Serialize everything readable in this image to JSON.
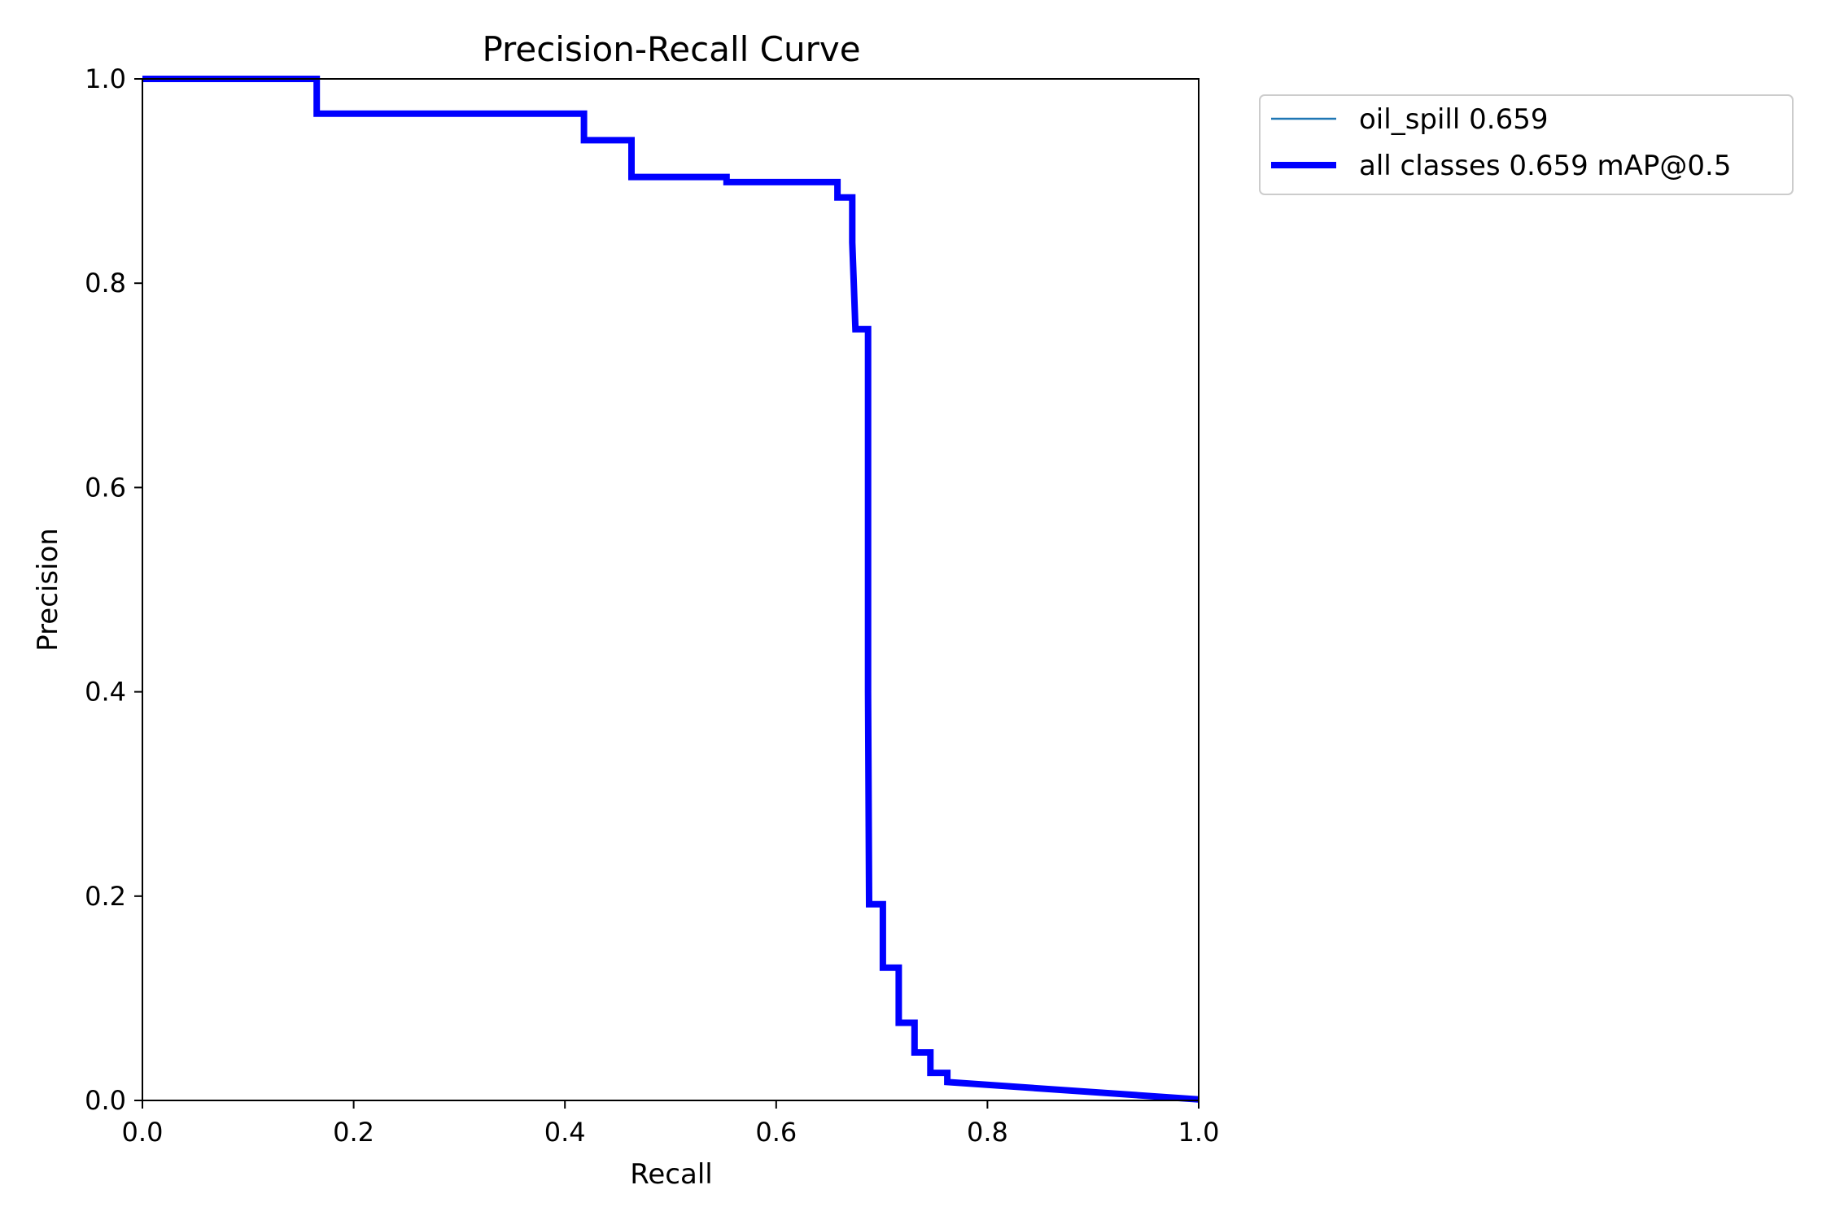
{
  "chart_data": {
    "type": "line",
    "title": "Precision-Recall Curve",
    "xlabel": "Recall",
    "ylabel": "Precision",
    "xlim": [
      0,
      1
    ],
    "ylim": [
      0,
      1
    ],
    "xticks": [
      "0.0",
      "0.2",
      "0.4",
      "0.6",
      "0.8",
      "1.0"
    ],
    "yticks": [
      "0.0",
      "0.2",
      "0.4",
      "0.6",
      "0.8",
      "1.0"
    ],
    "grid": false,
    "legend_position": "outside-top-right",
    "series": [
      {
        "name": "oil_spill 0.659",
        "color": "#1f77b4",
        "style": "thin",
        "x": [
          0.0,
          0.165,
          0.165,
          0.418,
          0.418,
          0.463,
          0.463,
          0.553,
          0.553,
          0.658,
          0.658,
          0.672,
          0.672,
          0.675,
          0.675,
          0.687,
          0.687,
          0.688,
          0.688,
          0.701,
          0.701,
          0.716,
          0.716,
          0.731,
          0.731,
          0.746,
          0.746,
          0.762,
          0.762,
          1.0
        ],
        "y": [
          1.0,
          1.0,
          0.966,
          0.966,
          0.94,
          0.94,
          0.904,
          0.904,
          0.899,
          0.899,
          0.884,
          0.884,
          0.84,
          0.755,
          0.755,
          0.755,
          0.4,
          0.192,
          0.192,
          0.192,
          0.13,
          0.13,
          0.076,
          0.076,
          0.047,
          0.047,
          0.027,
          0.027,
          0.018,
          0.001
        ]
      },
      {
        "name": "all classes 0.659 mAP@0.5",
        "color": "#0000ff",
        "style": "thick",
        "x": [
          0.0,
          0.165,
          0.165,
          0.418,
          0.418,
          0.463,
          0.463,
          0.553,
          0.553,
          0.658,
          0.658,
          0.672,
          0.672,
          0.675,
          0.675,
          0.687,
          0.687,
          0.688,
          0.688,
          0.701,
          0.701,
          0.716,
          0.716,
          0.731,
          0.731,
          0.746,
          0.746,
          0.762,
          0.762,
          1.0
        ],
        "y": [
          1.0,
          1.0,
          0.966,
          0.966,
          0.94,
          0.94,
          0.904,
          0.904,
          0.899,
          0.899,
          0.884,
          0.884,
          0.84,
          0.755,
          0.755,
          0.755,
          0.4,
          0.192,
          0.192,
          0.192,
          0.13,
          0.13,
          0.076,
          0.076,
          0.047,
          0.047,
          0.027,
          0.027,
          0.018,
          0.001
        ]
      }
    ]
  }
}
